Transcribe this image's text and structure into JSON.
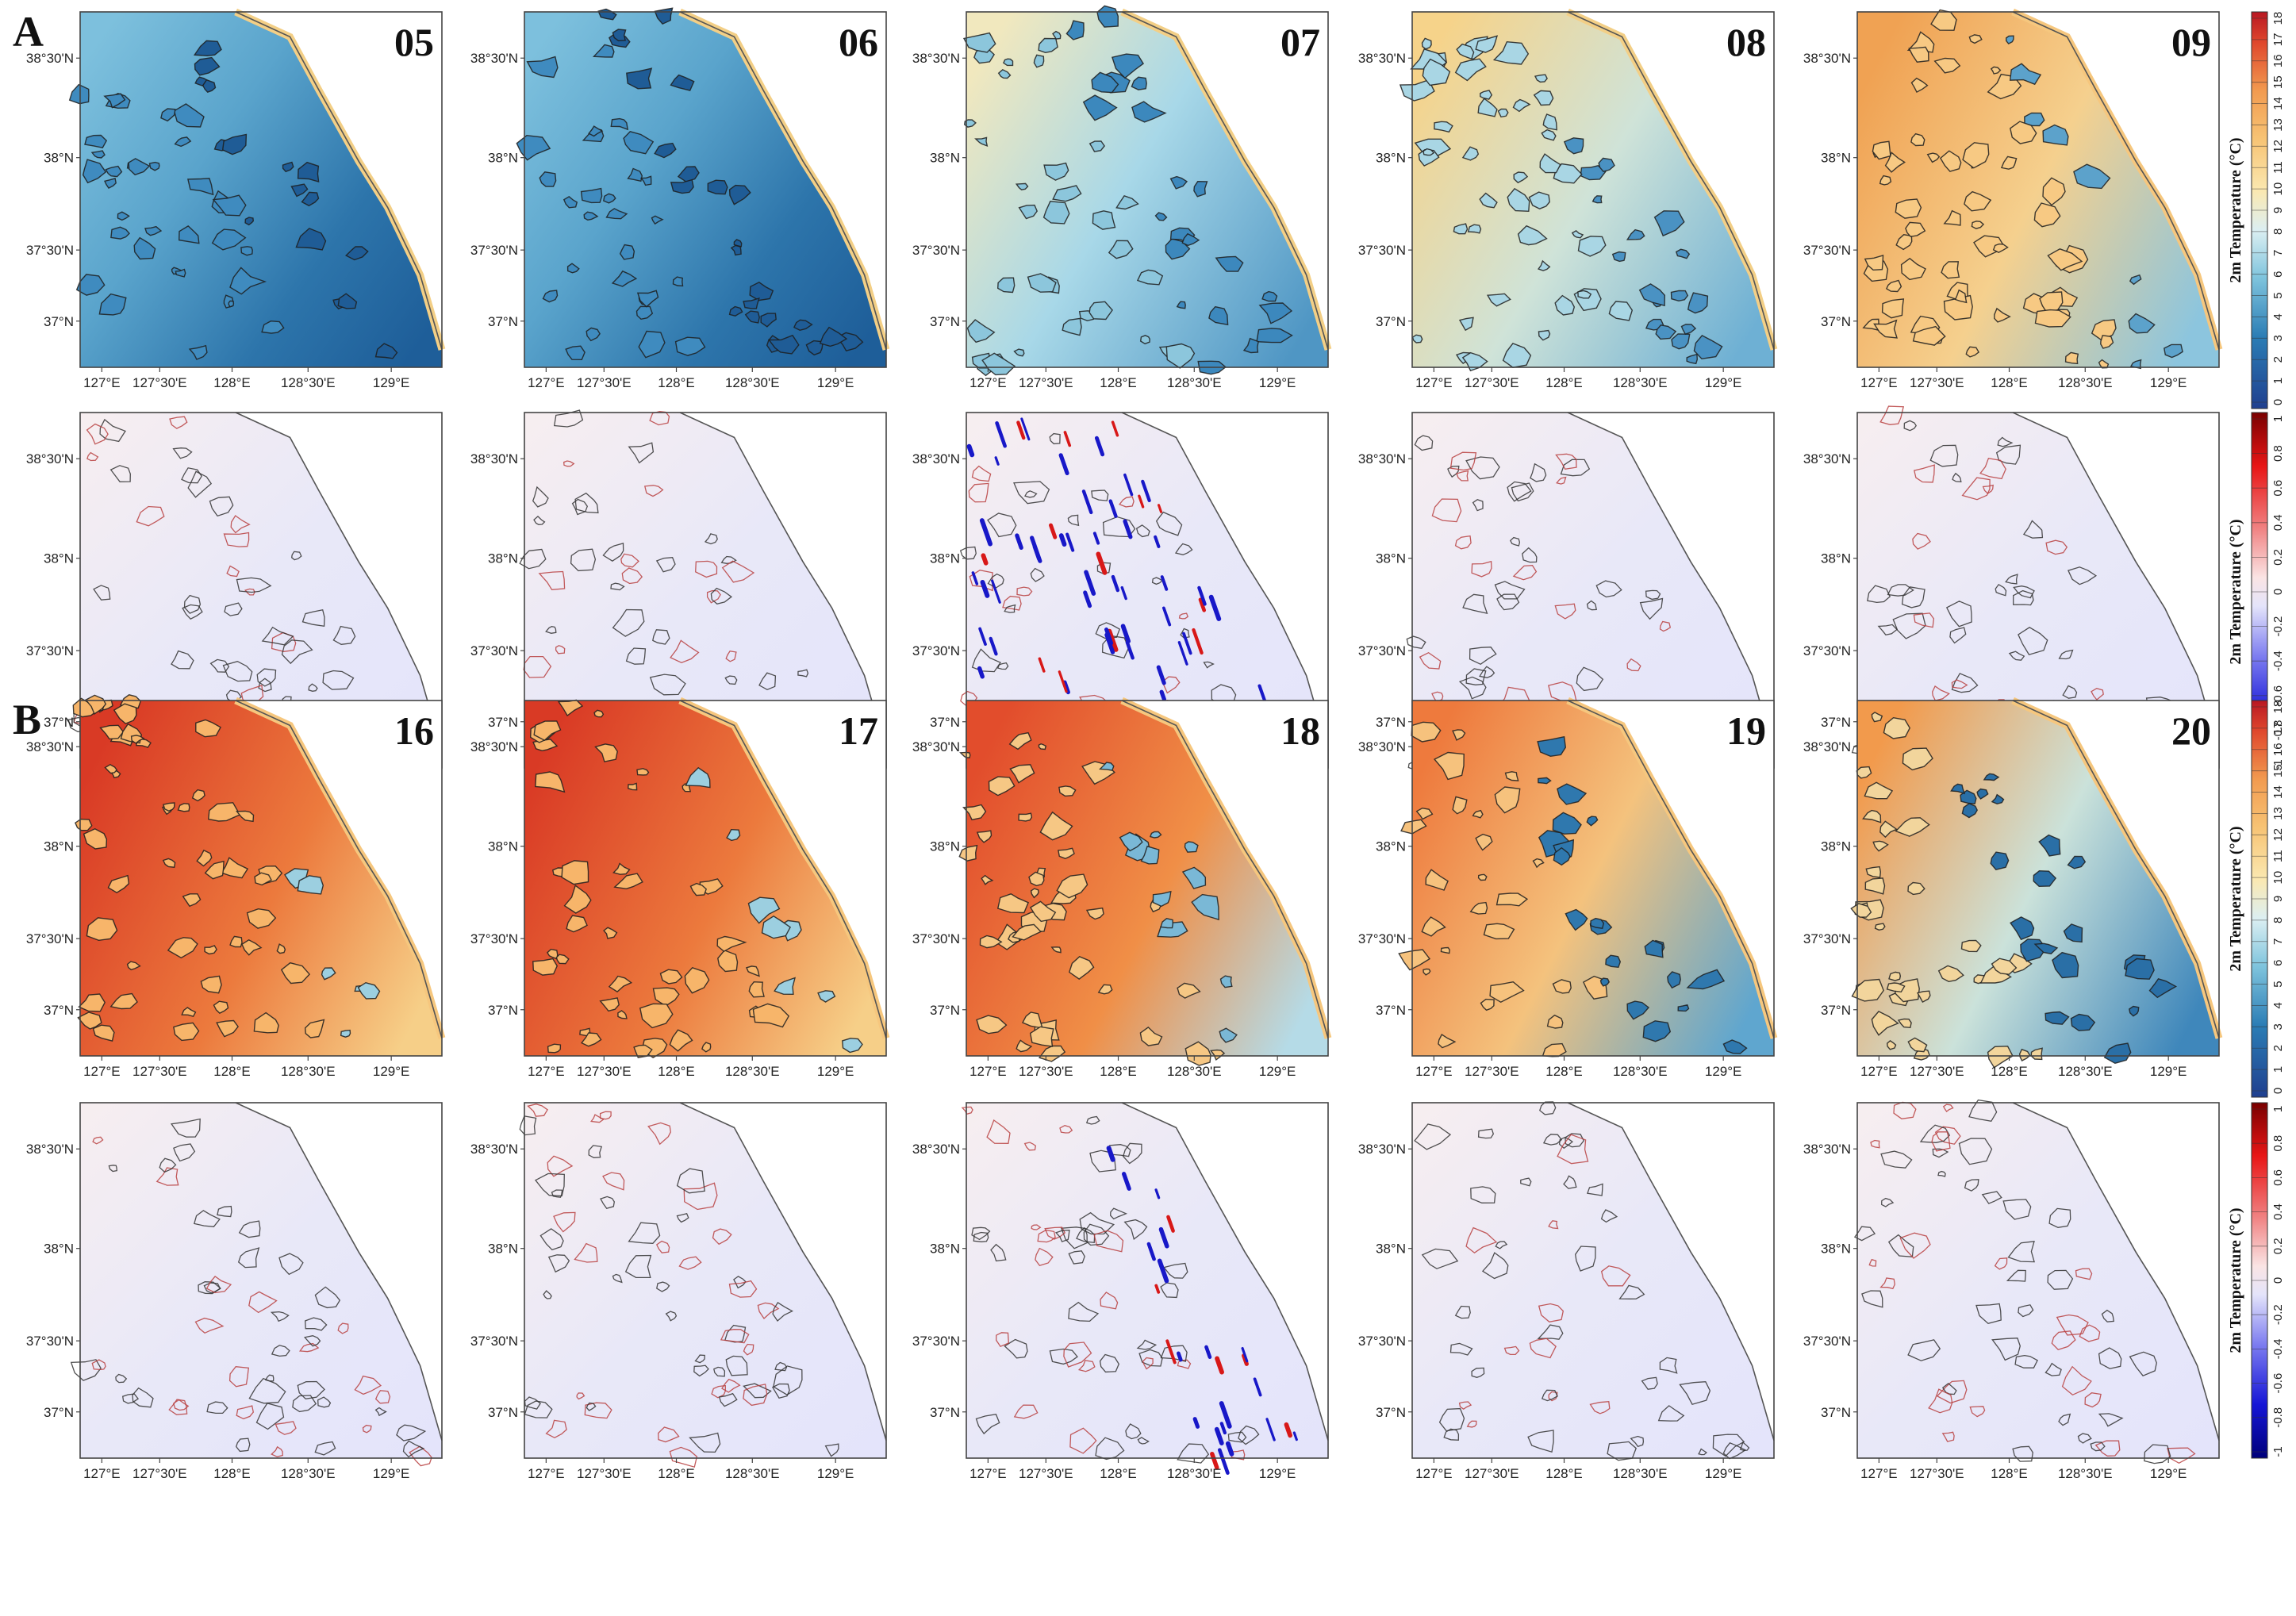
{
  "figure": {
    "panel_labels": [
      "A",
      "B"
    ],
    "sections": [
      {
        "label": "A",
        "hours": [
          "05",
          "06",
          "07",
          "08",
          "09"
        ]
      },
      {
        "label": "B",
        "hours": [
          "16",
          "17",
          "18",
          "19",
          "20"
        ]
      }
    ],
    "axis": {
      "lon_ticks": [
        "127°E",
        "127°30'E",
        "128°E",
        "128°30'E",
        "129°E"
      ],
      "lat_ticks": [
        "38°30'N",
        "38°N",
        "37°30'N",
        "37°N"
      ]
    },
    "colorbars": {
      "temperature": {
        "title": "2m Temperature (°C)",
        "ticks": [
          "0",
          "1",
          "2",
          "3",
          "4",
          "5",
          "6",
          "7",
          "8",
          "9",
          "10",
          "11",
          "12",
          "13",
          "14",
          "15",
          "16",
          "17",
          "18"
        ]
      },
      "difference": {
        "title": "2m Temperature (°C)",
        "ticks": [
          "-1",
          "-0.8",
          "-0.6",
          "-0.4",
          "-0.2",
          "0",
          "0.2",
          "0.4",
          "0.6",
          "0.8",
          "1"
        ]
      }
    },
    "colors": {
      "blue_dark": "#1a5a96",
      "blue_light": "#a9dcec",
      "yellow": "#f7df9c",
      "orange": "#f2a04b",
      "red": "#d7301f",
      "diff_blue": "#1818c8",
      "diff_red": "#d81818"
    }
  }
}
